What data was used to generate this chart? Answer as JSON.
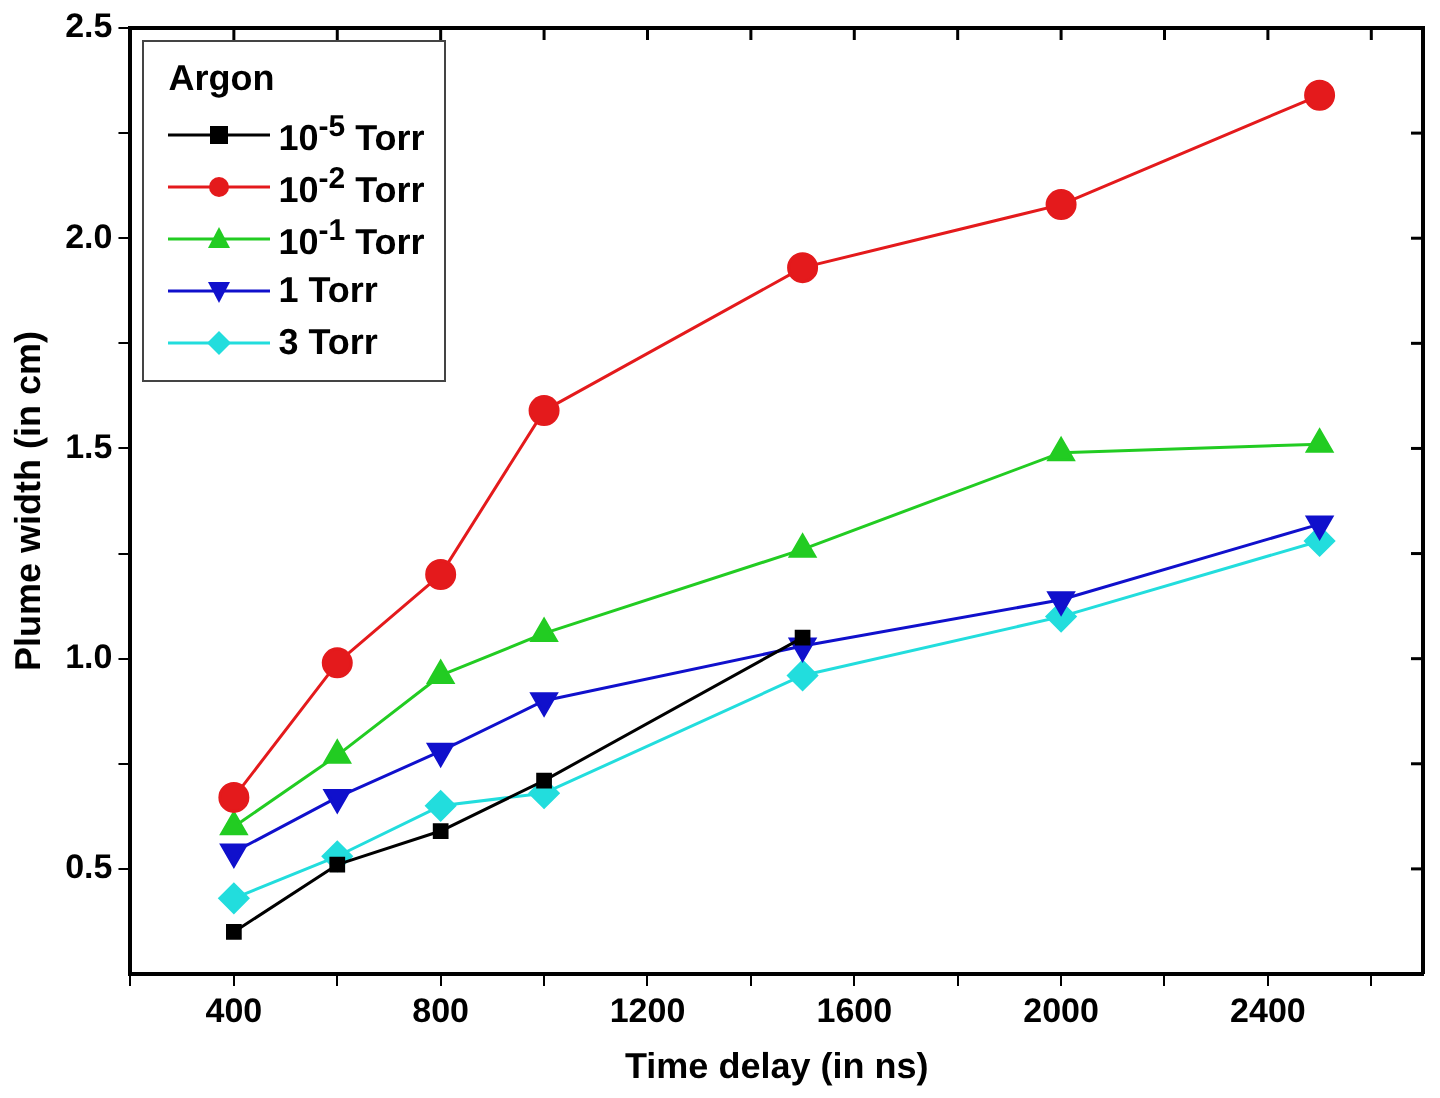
{
  "chart_data": {
    "type": "line",
    "xlabel": "Time delay (in ns)",
    "ylabel": "Plume width (in cm)",
    "legend_title": "Argon",
    "legend": "top left",
    "grid": false,
    "x": [
      400,
      600,
      800,
      1000,
      1500,
      2000,
      2500
    ],
    "xlim": [
      200,
      2700
    ],
    "xticks": [
      {
        "value": 200,
        "label": null
      },
      400,
      {
        "value": 600,
        "label": null
      },
      800,
      {
        "value": 1000,
        "label": null
      },
      1200,
      {
        "value": 1400,
        "label": null
      },
      1600,
      {
        "value": 1800,
        "label": null
      },
      2000,
      {
        "value": 2200,
        "label": null
      },
      2400,
      {
        "value": 2600,
        "label": null
      }
    ],
    "ylim": [
      0.25,
      2.5
    ],
    "yticks": [
      0.5,
      {
        "value": 0.75,
        "label": null
      },
      {
        "value": 1,
        "label": "1.0"
      },
      {
        "value": 1.25,
        "label": null
      },
      1.5,
      {
        "value": 1.75,
        "label": null
      },
      {
        "value": 2,
        "label": "2.0"
      },
      {
        "value": 2.25,
        "label": null
      },
      2.5
    ],
    "series": [
      {
        "name": "10$^{-5}$ Torr",
        "color": "#000000",
        "marker": "square",
        "values": [
          0.35,
          0.51,
          0.59,
          0.71,
          1.05,
          null,
          null
        ]
      },
      {
        "name": "10$^{-2}$ Torr",
        "color": "#e41a1c",
        "marker": "circle",
        "values": [
          0.67,
          0.99,
          1.2,
          1.59,
          1.93,
          2.08,
          2.34
        ]
      },
      {
        "name": "10$^{-1}$ Torr",
        "color": "#22cc22",
        "marker": "triangle",
        "values": [
          0.6,
          0.77,
          0.96,
          1.06,
          1.26,
          1.49,
          1.51
        ]
      },
      {
        "name": "1 Torr",
        "color": "#1010cc",
        "marker": "triangle-down",
        "values": [
          0.54,
          0.67,
          0.78,
          0.9,
          1.03,
          1.14,
          1.32
        ]
      },
      {
        "name": "3 Torr",
        "color": "#22dddd",
        "marker": "diamond",
        "values": [
          0.43,
          0.53,
          0.65,
          0.68,
          0.96,
          1.1,
          1.28
        ]
      }
    ]
  }
}
